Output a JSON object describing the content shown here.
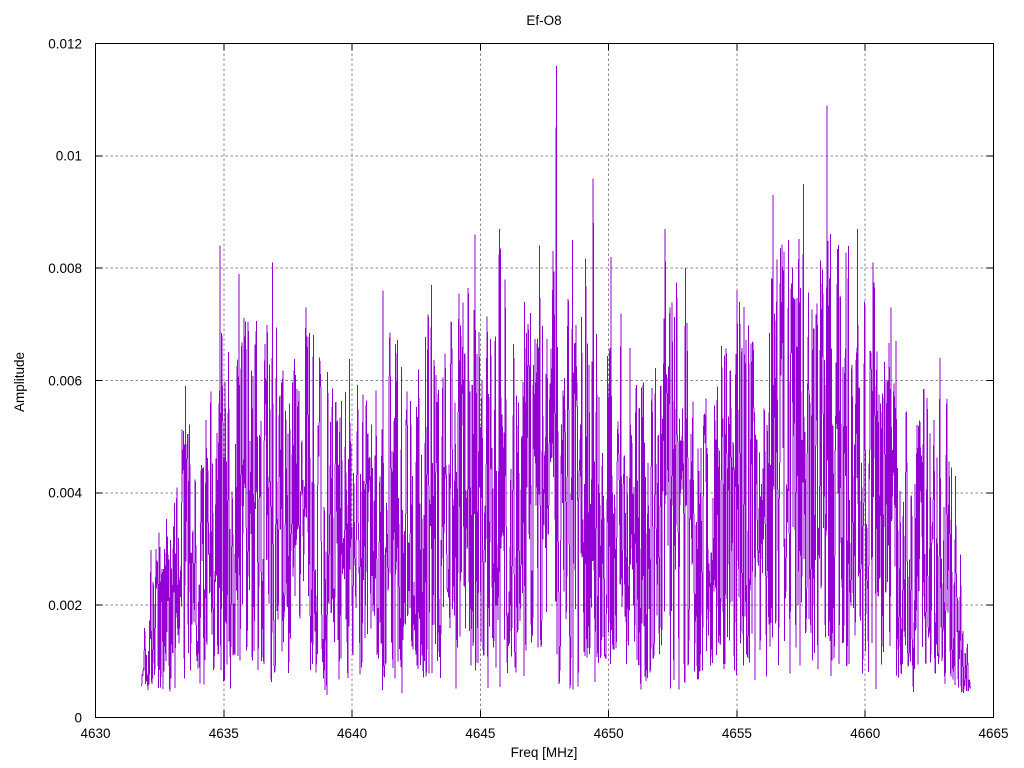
{
  "chart_data": {
    "type": "line",
    "title": "Ef-O8",
    "xlabel": "Freq [MHz]",
    "ylabel": "Amplitude",
    "xlim": [
      4630,
      4665
    ],
    "ylim": [
      0,
      0.012
    ],
    "xticks": [
      {
        "value": 4630,
        "label": "4630"
      },
      {
        "value": 4635,
        "label": "4635"
      },
      {
        "value": 4640,
        "label": "4640"
      },
      {
        "value": 4645,
        "label": "4645"
      },
      {
        "value": 4650,
        "label": "4650"
      },
      {
        "value": 4655,
        "label": "4655"
      },
      {
        "value": 4660,
        "label": "4660"
      },
      {
        "value": 4665,
        "label": "4665"
      }
    ],
    "yticks": [
      {
        "value": 0,
        "label": "0"
      },
      {
        "value": 0.002,
        "label": "0.002"
      },
      {
        "value": 0.004,
        "label": "0.004"
      },
      {
        "value": 0.006,
        "label": "0.006"
      },
      {
        "value": 0.008,
        "label": "0.008"
      },
      {
        "value": 0.01,
        "label": "0.01"
      },
      {
        "value": 0.012,
        "label": "0.012"
      }
    ],
    "grid": true,
    "legend": "none",
    "line_color": "#9400d3",
    "grid_color": "#8a8a8a",
    "frame_color": "#000000",
    "text_color": "#000000",
    "background": "#ffffff",
    "x_start": 4631.8,
    "x_end": 4664.1,
    "n_points": 1440,
    "seed": 1337,
    "noise_floor": 0.0004,
    "envelope": [
      [
        4631.8,
        0.001
      ],
      [
        4632.0,
        0.0028
      ],
      [
        4632.4,
        0.0036
      ],
      [
        4633.0,
        0.0042
      ],
      [
        4633.5,
        0.0056
      ],
      [
        4634.0,
        0.0048
      ],
      [
        4634.5,
        0.0062
      ],
      [
        4634.9,
        0.008
      ],
      [
        4635.3,
        0.0068
      ],
      [
        4635.7,
        0.0078
      ],
      [
        4636.2,
        0.0072
      ],
      [
        4636.9,
        0.0079
      ],
      [
        4637.4,
        0.006
      ],
      [
        4638.1,
        0.0072
      ],
      [
        4638.7,
        0.0068
      ],
      [
        4639.3,
        0.0058
      ],
      [
        4640.0,
        0.0065
      ],
      [
        4640.7,
        0.006
      ],
      [
        4641.2,
        0.0074
      ],
      [
        4641.8,
        0.0068
      ],
      [
        4642.4,
        0.0065
      ],
      [
        4643.0,
        0.0075
      ],
      [
        4643.6,
        0.0068
      ],
      [
        4644.3,
        0.0078
      ],
      [
        4644.8,
        0.0082
      ],
      [
        4645.3,
        0.008
      ],
      [
        4645.8,
        0.0085
      ],
      [
        4646.4,
        0.0072
      ],
      [
        4647.0,
        0.0077
      ],
      [
        4647.6,
        0.0082
      ],
      [
        4648.0,
        0.0088
      ],
      [
        4648.4,
        0.0076
      ],
      [
        4649.0,
        0.0081
      ],
      [
        4649.5,
        0.0088
      ],
      [
        4650.0,
        0.008
      ],
      [
        4650.6,
        0.007
      ],
      [
        4651.2,
        0.0062
      ],
      [
        4651.9,
        0.0066
      ],
      [
        4652.3,
        0.0082
      ],
      [
        4652.9,
        0.0078
      ],
      [
        4653.5,
        0.0065
      ],
      [
        4654.1,
        0.006
      ],
      [
        4654.7,
        0.0074
      ],
      [
        4655.3,
        0.0074
      ],
      [
        4655.9,
        0.0068
      ],
      [
        4656.5,
        0.0086
      ],
      [
        4657.1,
        0.0082
      ],
      [
        4657.6,
        0.0088
      ],
      [
        4658.1,
        0.0078
      ],
      [
        4658.5,
        0.0092
      ],
      [
        4659.0,
        0.0084
      ],
      [
        4659.6,
        0.0086
      ],
      [
        4660.2,
        0.008
      ],
      [
        4660.8,
        0.0073
      ],
      [
        4661.4,
        0.0065
      ],
      [
        4662.0,
        0.0057
      ],
      [
        4662.6,
        0.0063
      ],
      [
        4663.2,
        0.0059
      ],
      [
        4663.6,
        0.004
      ],
      [
        4663.9,
        0.0016
      ],
      [
        4664.1,
        0.001
      ]
    ],
    "peaks": [
      [
        4633.5,
        0.0059
      ],
      [
        4634.85,
        0.0084
      ],
      [
        4635.6,
        0.0079
      ],
      [
        4636.9,
        0.0081
      ],
      [
        4638.2,
        0.0073
      ],
      [
        4641.2,
        0.0076
      ],
      [
        4643.1,
        0.0077
      ],
      [
        4644.8,
        0.0086
      ],
      [
        4645.75,
        0.0087
      ],
      [
        4647.3,
        0.0084
      ],
      [
        4647.97,
        0.0116
      ],
      [
        4648.6,
        0.0085
      ],
      [
        4649.4,
        0.0096
      ],
      [
        4650.1,
        0.0082
      ],
      [
        4652.2,
        0.0087
      ],
      [
        4653.0,
        0.008
      ],
      [
        4655.0,
        0.0076
      ],
      [
        4656.4,
        0.0093
      ],
      [
        4657.0,
        0.0085
      ],
      [
        4657.6,
        0.0095
      ],
      [
        4658.5,
        0.0109
      ],
      [
        4659.7,
        0.0087
      ],
      [
        4660.3,
        0.0081
      ],
      [
        4661.0,
        0.0073
      ],
      [
        4662.9,
        0.0064
      ]
    ]
  }
}
